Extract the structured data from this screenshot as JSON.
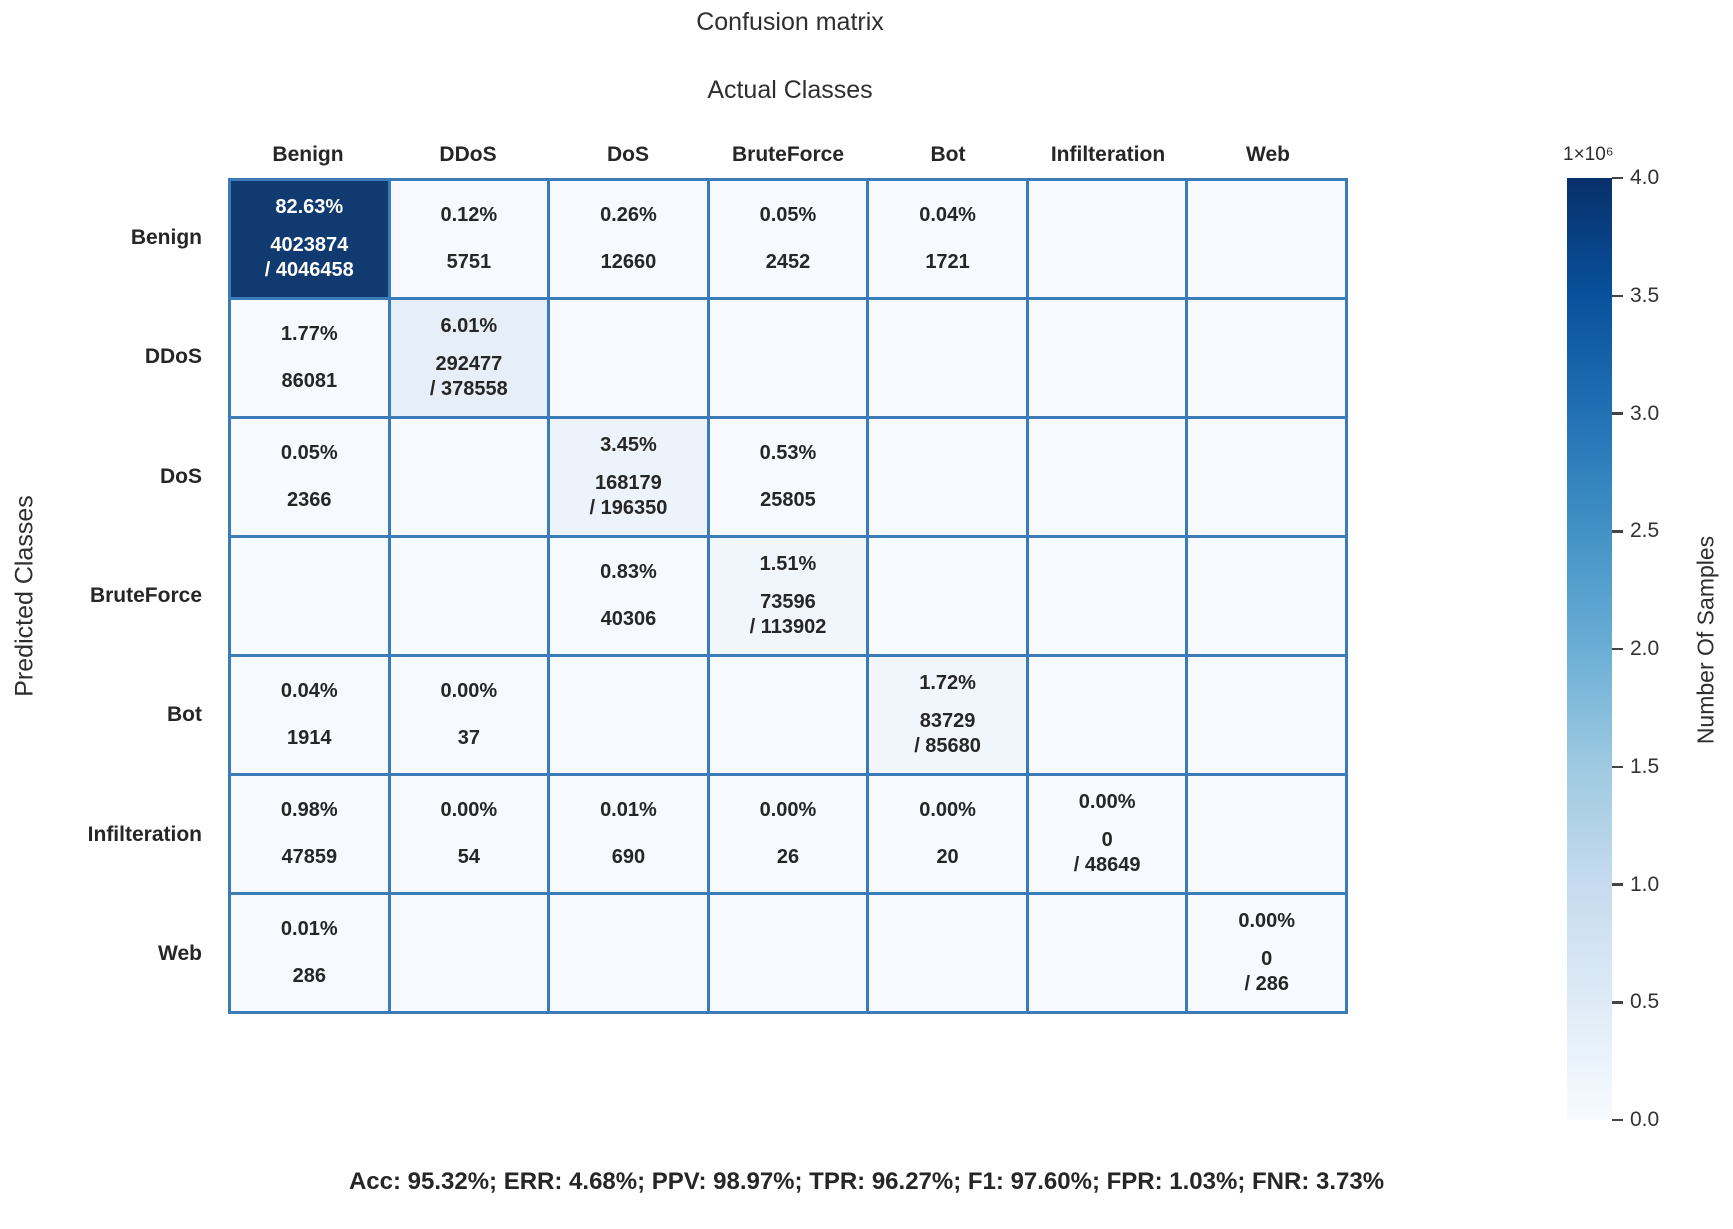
{
  "title": "Confusion matrix",
  "x_axis_title": "Actual Classes",
  "y_axis_title": "Predicted Classes",
  "stats_line": "Acc: 95.32%; ERR: 4.68%; PPV: 98.97%; TPR: 96.27%; F1: 97.60%; FPR: 1.03%; FNR: 3.73%",
  "colors": {
    "grid_border": "#3b7cb8",
    "cell_bg": "#f6fafe",
    "diagonal_max": "#113a70",
    "text": "#262626",
    "white_text": "#ffffff"
  },
  "colorbar": {
    "scale_label": "1×10⁶",
    "axis_label": "Number Of Samples",
    "ticks": [
      "4.0",
      "3.5",
      "3.0",
      "2.5",
      "2.0",
      "1.5",
      "1.0",
      "0.5",
      "0.0"
    ]
  },
  "chart_data": {
    "type": "heatmap",
    "title": "Confusion matrix",
    "xlabel": "Actual Classes",
    "ylabel": "Predicted Classes",
    "legend_label": "Number Of Samples",
    "colorbar_range": [
      0,
      4000000
    ],
    "categories": [
      "Benign",
      "DDoS",
      "DoS",
      "BruteForce",
      "Bot",
      "Infilteration",
      "Web"
    ],
    "rows": [
      {
        "label": "Benign",
        "cells": [
          {
            "pct": "82.63%",
            "count": "4023874",
            "total": "4046458",
            "bg": "#113a70",
            "light": true
          },
          {
            "pct": "0.12%",
            "count": "5751"
          },
          {
            "pct": "0.26%",
            "count": "12660"
          },
          {
            "pct": "0.05%",
            "count": "2452"
          },
          {
            "pct": "0.04%",
            "count": "1721"
          },
          null,
          null
        ]
      },
      {
        "label": "DDoS",
        "cells": [
          {
            "pct": "1.77%",
            "count": "86081"
          },
          {
            "pct": "6.01%",
            "count": "292477",
            "total": "378558",
            "bg": "#e6eef8"
          },
          null,
          null,
          null,
          null,
          null
        ]
      },
      {
        "label": "DoS",
        "cells": [
          {
            "pct": "0.05%",
            "count": "2366"
          },
          null,
          {
            "pct": "3.45%",
            "count": "168179",
            "total": "196350",
            "bg": "#edf3fb"
          },
          {
            "pct": "0.53%",
            "count": "25805"
          },
          null,
          null,
          null
        ]
      },
      {
        "label": "BruteForce",
        "cells": [
          null,
          null,
          {
            "pct": "0.83%",
            "count": "40306"
          },
          {
            "pct": "1.51%",
            "count": "73596",
            "total": "113902",
            "bg": "#f1f6fd"
          },
          null,
          null,
          null
        ]
      },
      {
        "label": "Bot",
        "cells": [
          {
            "pct": "0.04%",
            "count": "1914"
          },
          {
            "pct": "0.00%",
            "count": "37"
          },
          null,
          null,
          {
            "pct": "1.72%",
            "count": "83729",
            "total": "85680",
            "bg": "#f0f6fc"
          },
          null,
          null
        ]
      },
      {
        "label": "Infilteration",
        "cells": [
          {
            "pct": "0.98%",
            "count": "47859"
          },
          {
            "pct": "0.00%",
            "count": "54"
          },
          {
            "pct": "0.01%",
            "count": "690"
          },
          {
            "pct": "0.00%",
            "count": "26"
          },
          {
            "pct": "0.00%",
            "count": "20"
          },
          {
            "pct": "0.00%",
            "count": "0",
            "total": "48649"
          },
          null
        ]
      },
      {
        "label": "Web",
        "cells": [
          {
            "pct": "0.01%",
            "count": "286"
          },
          null,
          null,
          null,
          null,
          null,
          {
            "pct": "0.00%",
            "count": "0",
            "total": "286"
          }
        ]
      }
    ]
  }
}
